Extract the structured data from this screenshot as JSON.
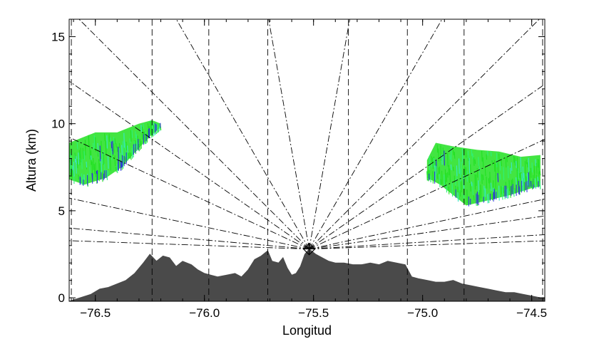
{
  "chart_data": {
    "type": "radar-vertical-cross-section",
    "title": "",
    "xlabel": "Longitud",
    "ylabel": "Altura (km)",
    "xlim": [
      -76.62,
      -74.44
    ],
    "ylim": [
      -0.2,
      16.0
    ],
    "x_ticks": [
      -76.5,
      -76.0,
      -75.5,
      -75.0,
      -74.5
    ],
    "x_tick_labels": [
      "−76.5",
      "−76.0",
      "−75.5",
      "−75.0",
      "−74.5"
    ],
    "y_ticks": [
      0,
      5,
      10,
      15
    ],
    "y_tick_labels": [
      "0",
      "5",
      "10",
      "15"
    ],
    "grid": false,
    "radar": {
      "lon": -75.52,
      "alt_km": 2.8
    },
    "terrain_profile": {
      "color": "#4a4a4a",
      "lon": [
        -76.62,
        -76.57,
        -76.52,
        -76.48,
        -76.44,
        -76.4,
        -76.36,
        -76.32,
        -76.28,
        -76.25,
        -76.22,
        -76.19,
        -76.16,
        -76.13,
        -76.1,
        -76.06,
        -76.03,
        -76.0,
        -75.97,
        -75.94,
        -75.9,
        -75.86,
        -75.83,
        -75.8,
        -75.77,
        -75.74,
        -75.71,
        -75.69,
        -75.66,
        -75.64,
        -75.62,
        -75.6,
        -75.58,
        -75.56,
        -75.54,
        -75.52,
        -75.49,
        -75.46,
        -75.43,
        -75.4,
        -75.36,
        -75.32,
        -75.28,
        -75.24,
        -75.2,
        -75.16,
        -75.12,
        -75.08,
        -75.05,
        -75.02,
        -74.98,
        -74.94,
        -74.9,
        -74.86,
        -74.82,
        -74.78,
        -74.74,
        -74.7,
        -74.66,
        -74.62,
        -74.58,
        -74.54,
        -74.5,
        -74.46,
        -74.44
      ],
      "alt_km": [
        -0.2,
        0.0,
        0.2,
        0.5,
        0.6,
        0.8,
        1.0,
        1.4,
        2.0,
        2.5,
        2.1,
        2.4,
        2.3,
        1.8,
        2.1,
        1.9,
        1.6,
        1.4,
        1.3,
        1.2,
        1.3,
        1.4,
        1.2,
        1.6,
        2.2,
        2.4,
        2.7,
        2.1,
        2.0,
        2.3,
        1.7,
        1.3,
        1.4,
        1.8,
        2.5,
        2.8,
        2.5,
        2.3,
        2.1,
        2.0,
        2.0,
        1.9,
        1.9,
        2.0,
        1.9,
        2.1,
        2.0,
        1.9,
        1.2,
        1.1,
        1.0,
        0.9,
        0.9,
        1.0,
        0.8,
        0.7,
        0.6,
        0.5,
        0.4,
        0.3,
        0.3,
        0.2,
        0.1,
        0.0,
        0.0
      ]
    },
    "beam_lines": {
      "style": "dash-dot",
      "elevation_deg": [
        2.0,
        3.5,
        8.0,
        12.0,
        25.0,
        35.0,
        45.0,
        60.0,
        80.0,
        100.0,
        120.0,
        135.0,
        145.0,
        155.0,
        168.0,
        175.0,
        178.0
      ]
    },
    "vertical_guides": {
      "style": "dashed",
      "lon": [
        -76.24,
        -75.98,
        -75.71,
        -75.34,
        -75.07,
        -74.81,
        -74.45,
        -76.61
      ]
    },
    "reflectivity_regions": [
      {
        "name": "",
        "colors": [
          "#21e121",
          "#2ef07a",
          "#38e6c8",
          "#2c2ce0"
        ],
        "upper": [
          [
            -76.62,
            8.9
          ],
          [
            -76.5,
            9.5
          ],
          [
            -76.4,
            9.5
          ],
          [
            -76.3,
            10.0
          ],
          [
            -76.24,
            10.2
          ],
          [
            -76.2,
            10.0
          ]
        ],
        "lower": [
          [
            -76.62,
            6.8
          ],
          [
            -76.55,
            6.5
          ],
          [
            -76.45,
            6.9
          ],
          [
            -76.38,
            7.5
          ],
          [
            -76.3,
            8.6
          ],
          [
            -76.24,
            9.4
          ],
          [
            -76.2,
            9.8
          ]
        ]
      },
      {
        "name": "",
        "colors": [
          "#21e121",
          "#2ef07a",
          "#38e6c8",
          "#2c2ce0"
        ],
        "upper": [
          [
            -74.98,
            7.9
          ],
          [
            -74.94,
            8.9
          ],
          [
            -74.86,
            8.7
          ],
          [
            -74.75,
            8.5
          ],
          [
            -74.65,
            8.4
          ],
          [
            -74.55,
            8.1
          ],
          [
            -74.46,
            8.2
          ]
        ],
        "lower": [
          [
            -74.98,
            6.9
          ],
          [
            -74.92,
            6.5
          ],
          [
            -74.86,
            5.9
          ],
          [
            -74.8,
            5.3
          ],
          [
            -74.7,
            5.6
          ],
          [
            -74.6,
            5.9
          ],
          [
            -74.5,
            6.3
          ],
          [
            -74.46,
            6.4
          ]
        ]
      }
    ]
  }
}
